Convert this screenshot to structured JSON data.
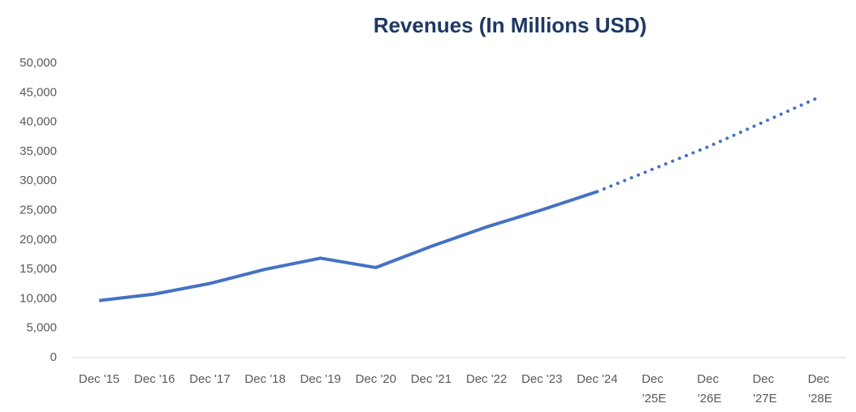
{
  "chart_data": {
    "type": "line",
    "title": "Revenues (In Millions USD)",
    "categories": [
      "Dec '15",
      "Dec '16",
      "Dec '17",
      "Dec '18",
      "Dec '19",
      "Dec '20",
      "Dec '21",
      "Dec '22",
      "Dec '23",
      "Dec '24",
      "Dec '25E",
      "Dec '26E",
      "Dec '27E",
      "Dec '28E"
    ],
    "series": [
      {
        "color": "#4472c4",
        "style": "solid",
        "values": [
          9700,
          10800,
          12600,
          15000,
          16900,
          15300,
          18900,
          22200,
          25100,
          28200,
          null,
          null,
          null,
          null
        ]
      },
      {
        "color": "#4472c4",
        "style": "dotted",
        "values": [
          null,
          null,
          null,
          null,
          null,
          null,
          null,
          null,
          null,
          28200,
          32000,
          35800,
          40000,
          44200
        ]
      }
    ],
    "ylim": [
      0,
      50000
    ],
    "yticks": [
      0,
      {
        "value": 5000,
        "label": "5,000"
      },
      {
        "value": 10000,
        "label": "10,000"
      },
      {
        "value": 15000,
        "label": "15,000"
      },
      {
        "value": 20000,
        "label": "20,000"
      },
      {
        "value": 25000,
        "label": "25,000"
      },
      {
        "value": 30000,
        "label": "30,000"
      },
      {
        "value": 35000,
        "label": "35,000"
      },
      {
        "value": 40000,
        "label": "40,000"
      },
      {
        "value": 45000,
        "label": "45,000"
      },
      {
        "value": 50000,
        "label": "50,000"
      }
    ],
    "grid": false
  }
}
